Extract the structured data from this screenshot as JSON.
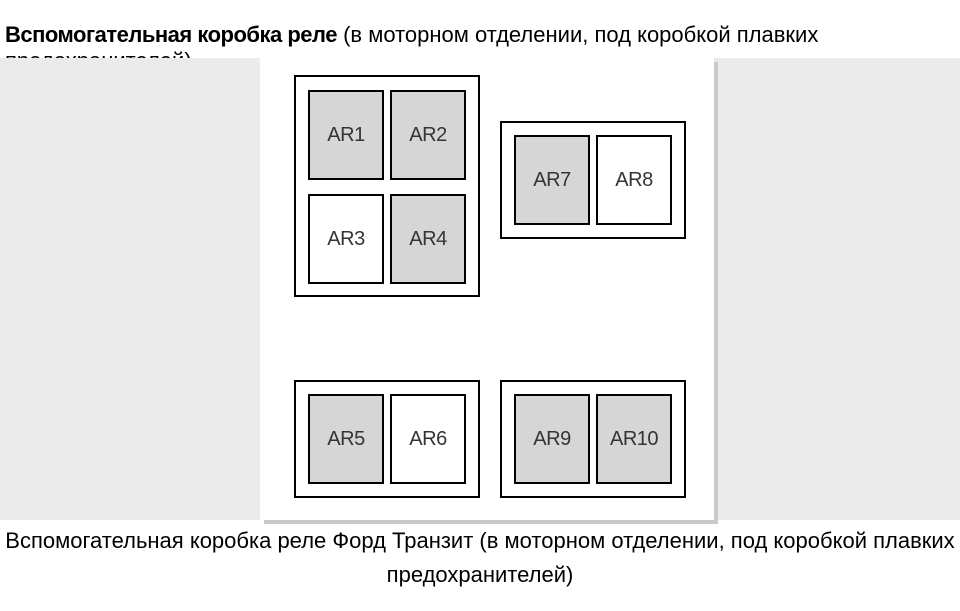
{
  "heading": {
    "bold": "Вспомогательная коробка реле",
    "rest": " (в моторном отделении, под коробкой плавких предохранителей)"
  },
  "caption": "Вспомогательная коробка реле Форд Транзит (в моторном отделении, под коробкой плавких предохранителей)",
  "diagram": {
    "panel_bg": "#ffffff",
    "middle_bg": "#ebebeb",
    "shadow_color": "#c9c9c9",
    "border_color": "#000000",
    "slot_shaded_bg": "#d6d6d6",
    "slot_white_bg": "#ffffff",
    "label_color": "#343434",
    "label_fontsize": 20,
    "blocks": [
      {
        "id": "b1",
        "slots": [
          {
            "label": "AR1",
            "shaded": true
          },
          {
            "label": "AR2",
            "shaded": true
          },
          {
            "label": "AR3",
            "shaded": false
          },
          {
            "label": "AR4",
            "shaded": true
          }
        ]
      },
      {
        "id": "b2",
        "slots": [
          {
            "label": "AR7",
            "shaded": true
          },
          {
            "label": "AR8",
            "shaded": false
          }
        ]
      },
      {
        "id": "b3",
        "slots": [
          {
            "label": "AR5",
            "shaded": true
          },
          {
            "label": "AR6",
            "shaded": false
          }
        ]
      },
      {
        "id": "b4",
        "slots": [
          {
            "label": "AR9",
            "shaded": true
          },
          {
            "label": "AR10",
            "shaded": true
          }
        ]
      }
    ]
  }
}
